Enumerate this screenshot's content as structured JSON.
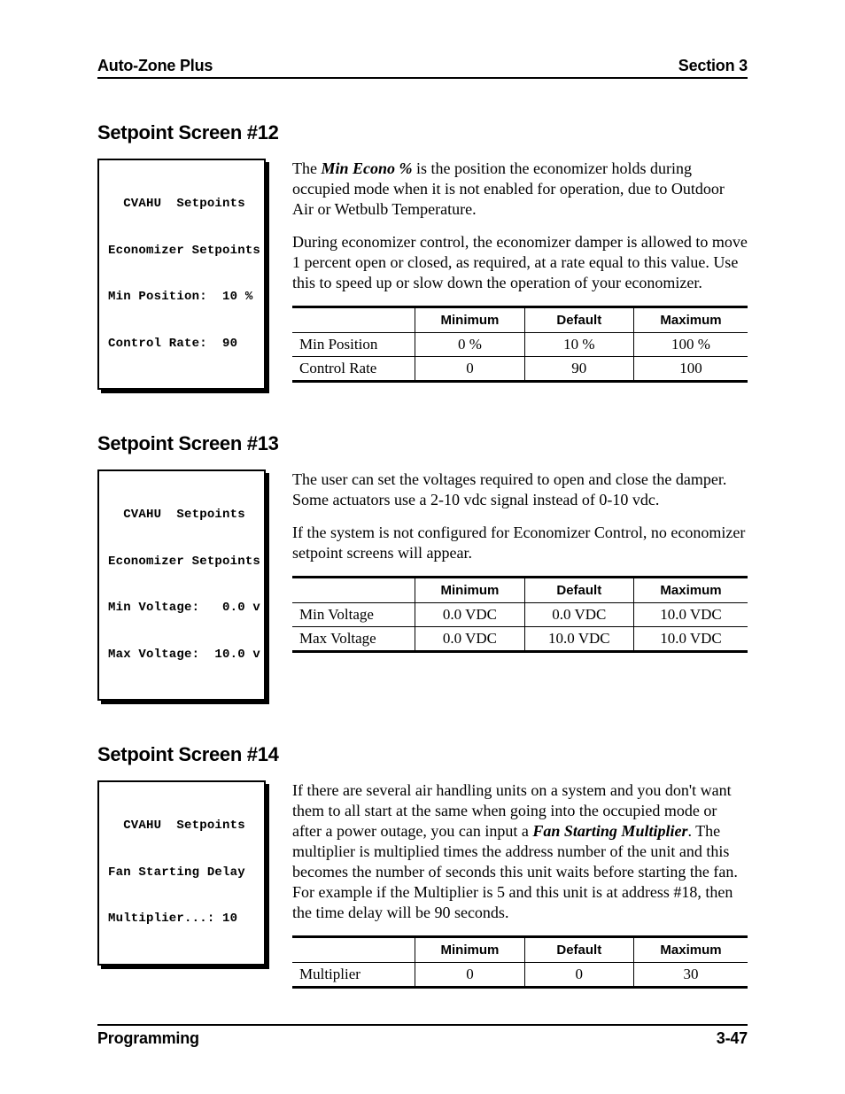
{
  "header": {
    "left": "Auto-Zone Plus",
    "right": "Section 3"
  },
  "footer": {
    "left": "Programming",
    "right": "3-47"
  },
  "table_headers": {
    "min": "Minimum",
    "def": "Default",
    "max": "Maximum"
  },
  "screen12": {
    "title": "Setpoint Screen #12",
    "lcd": {
      "line1": "  CVAHU  Setpoints",
      "line2": "Economizer Setpoints",
      "line3": "Min Position:  10 %",
      "line4": "Control Rate:  90"
    },
    "para1_pre": "The ",
    "para1_term": "Min Econo %",
    "para1_post": " is the position the economizer holds during occupied mode when it is not enabled for operation, due to Outdoor Air or Wetbulb Temperature.",
    "para2": "During economizer control, the economizer damper is allowed to move 1 percent open or closed, as required, at a rate equal to this value. Use this to speed up or slow down the operation of your economizer.",
    "rows": [
      {
        "label": "Min Position",
        "min": "0 %",
        "def": "10 %",
        "max": "100 %"
      },
      {
        "label": "Control Rate",
        "min": "0",
        "def": "90",
        "max": "100"
      }
    ]
  },
  "screen13": {
    "title": "Setpoint Screen #13",
    "lcd": {
      "line1": "  CVAHU  Setpoints",
      "line2": "Economizer Setpoints",
      "line3": "Min Voltage:   0.0 v",
      "line4": "Max Voltage:  10.0 v"
    },
    "para1": "The user can set the voltages required to open and close the damper. Some actuators use a 2-10 vdc signal instead of 0-10 vdc.",
    "para2": "If the system is not configured for Economizer Control, no economizer setpoint screens will appear.",
    "rows": [
      {
        "label": "Min Voltage",
        "min": "0.0 VDC",
        "def": "0.0 VDC",
        "max": "10.0 VDC"
      },
      {
        "label": "Max Voltage",
        "min": "0.0 VDC",
        "def": "10.0 VDC",
        "max": "10.0 VDC"
      }
    ]
  },
  "screen14": {
    "title": "Setpoint Screen #14",
    "lcd": {
      "line1": "  CVAHU  Setpoints",
      "line2": "Fan Starting Delay",
      "line3": "Multiplier...: 10"
    },
    "para1_pre": "If there are several air handling units on a system and you don't want them to all start at the same when going into the occupied mode or after a power outage, you can input a ",
    "para1_term": "Fan Starting Multiplier",
    "para1_post": ". The multiplier is multiplied times the address number of the unit and this becomes the number of seconds this unit waits before starting the fan. For example if the Multiplier is 5 and this unit is at address #18, then the time delay will be 90 seconds.",
    "rows": [
      {
        "label": "Multiplier",
        "min": "0",
        "def": "0",
        "max": "30"
      }
    ]
  }
}
